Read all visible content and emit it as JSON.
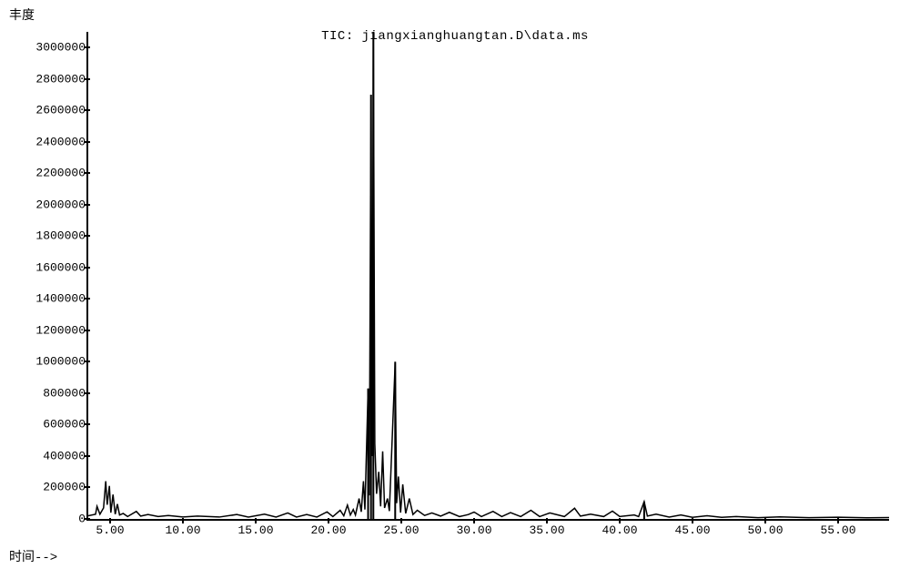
{
  "chart": {
    "type": "line",
    "title": "TIC:  jiangxianghuangtan.D\\data.ms",
    "ylabel": "丰度",
    "xlabel": "时间-->",
    "background_color": "#ffffff",
    "line_color": "#000000",
    "axis_color": "#000000",
    "line_width": 1.5,
    "title_fontsize": 14,
    "label_fontsize": 14,
    "tick_fontsize": 13,
    "font_family_ticks": "Courier New, monospace",
    "font_family_labels": "SimSun, Courier New, monospace",
    "xlim": [
      3.5,
      58.5
    ],
    "ylim": [
      0,
      3100000
    ],
    "xticks": [
      5,
      10,
      15,
      20,
      25,
      30,
      35,
      40,
      45,
      50,
      55
    ],
    "xtick_labels": [
      "5.00",
      "10.00",
      "15.00",
      "20.00",
      "25.00",
      "30.00",
      "35.00",
      "40.00",
      "45.00",
      "50.00",
      "55.00"
    ],
    "yticks": [
      0,
      200000,
      400000,
      600000,
      800000,
      1000000,
      1200000,
      1400000,
      1600000,
      1800000,
      2000000,
      2200000,
      2400000,
      2600000,
      2800000,
      3000000
    ],
    "ytick_labels": [
      "0",
      "200000",
      "400000",
      "600000",
      "800000",
      "1000000",
      "1200000",
      "1400000",
      "1600000",
      "1800000",
      "2000000",
      "2200000",
      "2400000",
      "2600000",
      "2800000",
      "3000000"
    ],
    "data": [
      [
        3.5,
        20000
      ],
      [
        4.0,
        30000
      ],
      [
        4.1,
        80000
      ],
      [
        4.3,
        30000
      ],
      [
        4.55,
        70000
      ],
      [
        4.7,
        240000
      ],
      [
        4.8,
        90000
      ],
      [
        4.95,
        210000
      ],
      [
        5.05,
        40000
      ],
      [
        5.2,
        155000
      ],
      [
        5.35,
        30000
      ],
      [
        5.5,
        95000
      ],
      [
        5.65,
        25000
      ],
      [
        5.9,
        35000
      ],
      [
        6.2,
        15000
      ],
      [
        6.8,
        48000
      ],
      [
        7.1,
        18000
      ],
      [
        7.6,
        28000
      ],
      [
        8.3,
        15000
      ],
      [
        9.0,
        22000
      ],
      [
        10.0,
        12000
      ],
      [
        11.0,
        18000
      ],
      [
        12.5,
        12000
      ],
      [
        13.7,
        28000
      ],
      [
        14.5,
        12000
      ],
      [
        15.6,
        30000
      ],
      [
        16.4,
        12000
      ],
      [
        17.2,
        38000
      ],
      [
        17.8,
        12000
      ],
      [
        18.5,
        28000
      ],
      [
        19.2,
        12000
      ],
      [
        19.9,
        45000
      ],
      [
        20.3,
        15000
      ],
      [
        20.8,
        55000
      ],
      [
        21.05,
        20000
      ],
      [
        21.3,
        88000
      ],
      [
        21.5,
        25000
      ],
      [
        21.7,
        60000
      ],
      [
        21.85,
        25000
      ],
      [
        22.1,
        130000
      ],
      [
        22.25,
        45000
      ],
      [
        22.4,
        240000
      ],
      [
        22.5,
        60000
      ],
      [
        22.72,
        830000
      ],
      [
        22.8,
        150000
      ],
      [
        22.92,
        2700000
      ],
      [
        23.0,
        400000
      ],
      [
        23.08,
        3100000
      ],
      [
        23.18,
        480000
      ],
      [
        23.3,
        160000
      ],
      [
        23.45,
        300000
      ],
      [
        23.58,
        80000
      ],
      [
        23.72,
        430000
      ],
      [
        23.85,
        70000
      ],
      [
        24.05,
        130000
      ],
      [
        24.18,
        50000
      ],
      [
        24.58,
        1000000
      ],
      [
        24.68,
        100000
      ],
      [
        24.8,
        270000
      ],
      [
        24.95,
        40000
      ],
      [
        25.1,
        220000
      ],
      [
        25.3,
        35000
      ],
      [
        25.55,
        130000
      ],
      [
        25.8,
        28000
      ],
      [
        26.1,
        55000
      ],
      [
        26.6,
        22000
      ],
      [
        27.1,
        38000
      ],
      [
        27.7,
        18000
      ],
      [
        28.3,
        42000
      ],
      [
        29.0,
        15000
      ],
      [
        29.6,
        28000
      ],
      [
        30.0,
        44000
      ],
      [
        30.5,
        15000
      ],
      [
        31.3,
        48000
      ],
      [
        31.9,
        15000
      ],
      [
        32.5,
        40000
      ],
      [
        33.2,
        15000
      ],
      [
        33.9,
        55000
      ],
      [
        34.5,
        15000
      ],
      [
        35.2,
        38000
      ],
      [
        36.2,
        15000
      ],
      [
        36.9,
        68000
      ],
      [
        37.3,
        18000
      ],
      [
        38.0,
        30000
      ],
      [
        38.9,
        15000
      ],
      [
        39.5,
        50000
      ],
      [
        40.0,
        15000
      ],
      [
        41.0,
        25000
      ],
      [
        41.3,
        15000
      ],
      [
        41.68,
        110000
      ],
      [
        41.9,
        18000
      ],
      [
        42.5,
        30000
      ],
      [
        43.4,
        12000
      ],
      [
        44.2,
        25000
      ],
      [
        45.0,
        10000
      ],
      [
        46.0,
        20000
      ],
      [
        47.0,
        10000
      ],
      [
        48.0,
        15000
      ],
      [
        49.5,
        8000
      ],
      [
        51.0,
        13000
      ],
      [
        53.0,
        8000
      ],
      [
        55.0,
        11000
      ],
      [
        57.0,
        7000
      ],
      [
        58.5,
        9000
      ]
    ]
  }
}
